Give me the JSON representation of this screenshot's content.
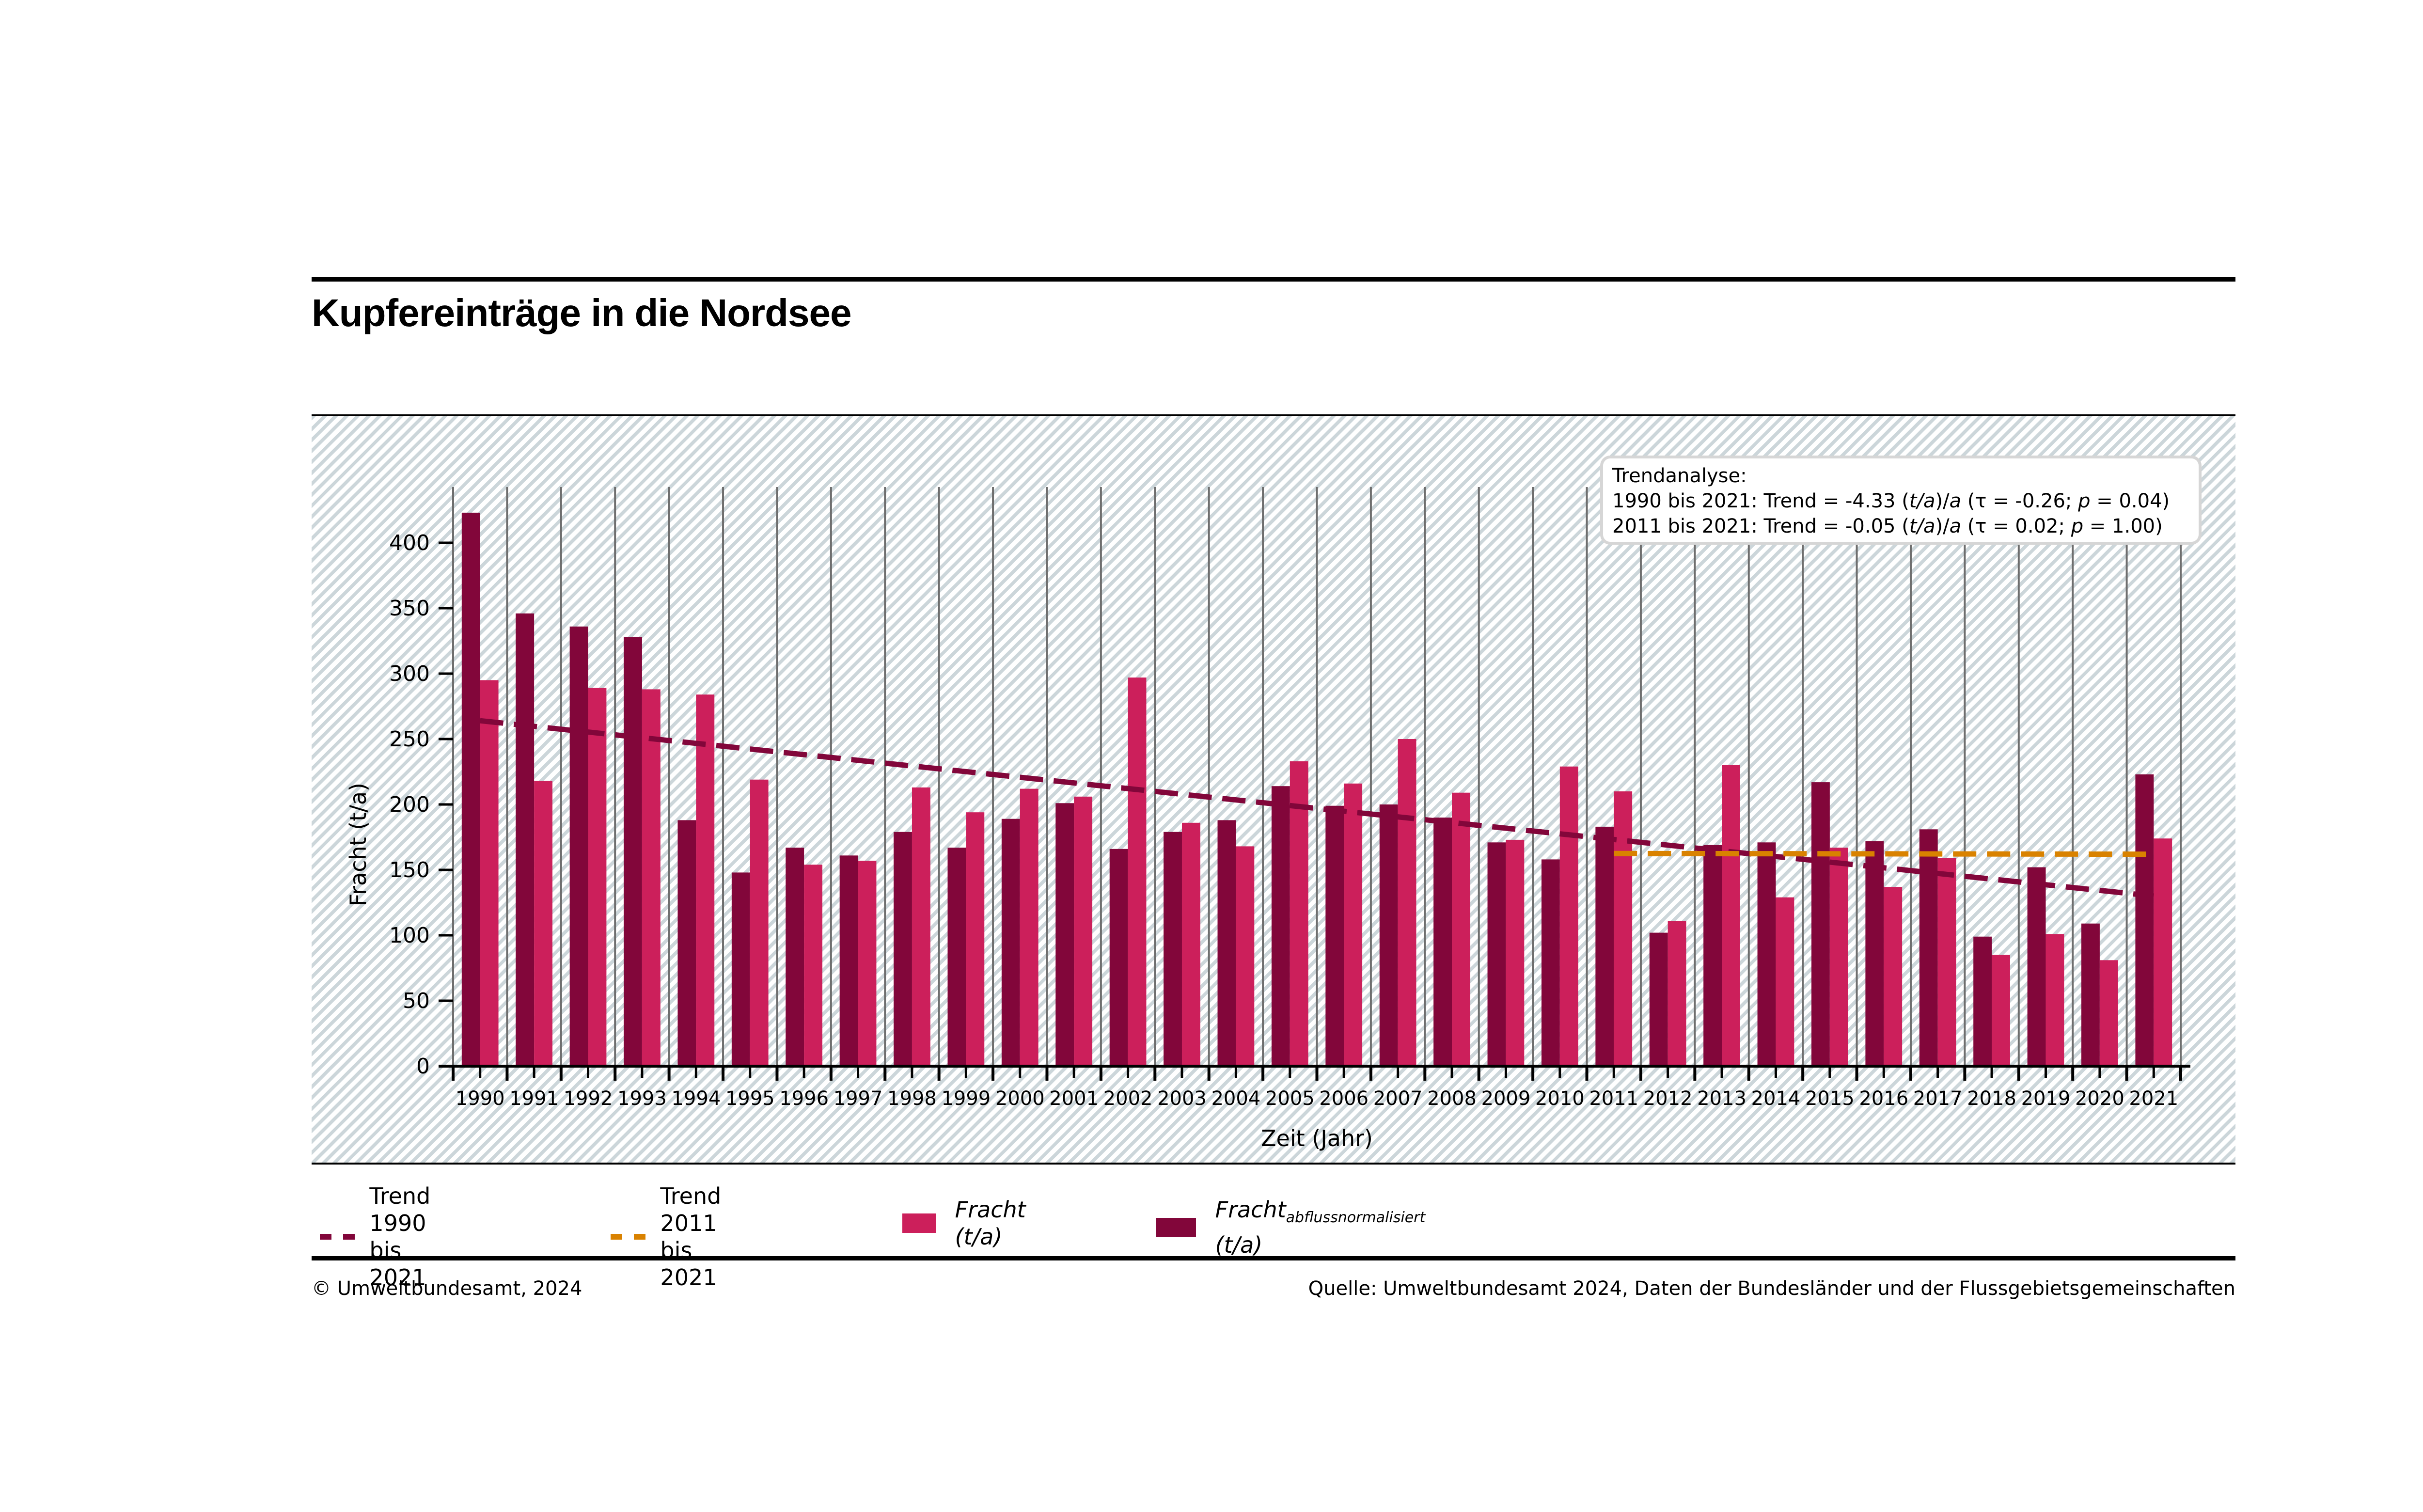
{
  "title": "Kupfereinträge in die Nordsee",
  "footer": {
    "copyright": "© Umweltbundesamt, 2024",
    "source": "Quelle: Umweltbundesamt 2024, Daten der Bundesländer und der Flussgebietsgemeinschaften"
  },
  "colors": {
    "fracht": "#cc1f5b",
    "fracht_normalized": "#82063a",
    "trend_long": "#82063a",
    "trend_short": "#d98200",
    "grid": "#6e6e6e"
  },
  "legend": {
    "trend_long_line1": "Trend",
    "trend_long_line2": "1990 bis 2021",
    "trend_short_line1": "Trend",
    "trend_short_line2": "2011 bis 2021",
    "fracht": "Fracht (t/a)",
    "fracht_norm_main": "Fracht",
    "fracht_norm_sub": "abflussnormalisiert",
    "fracht_norm_unit": " (t/a)"
  },
  "chart_data": {
    "type": "bar",
    "title": "Kupfereinträge in die Nordsee",
    "xlabel": "Zeit (Jahr)",
    "ylabel": "Fracht (t/a)",
    "ylim": [
      0,
      450
    ],
    "yticks": [
      0,
      50,
      100,
      150,
      200,
      250,
      300,
      350,
      400
    ],
    "grid": "vertical",
    "categories": [
      "1990",
      "1991",
      "1992",
      "1993",
      "1994",
      "1995",
      "1996",
      "1997",
      "1998",
      "1999",
      "2000",
      "2001",
      "2002",
      "2003",
      "2004",
      "2005",
      "2006",
      "2007",
      "2008",
      "2009",
      "2010",
      "2011",
      "2012",
      "2013",
      "2014",
      "2015",
      "2016",
      "2017",
      "2018",
      "2019",
      "2020",
      "2021"
    ],
    "series": [
      {
        "name": "Fracht abflussnormalisiert (t/a)",
        "key": "fracht_normalized",
        "values": [
          423,
          346,
          336,
          328,
          188,
          148,
          167,
          161,
          179,
          167,
          189,
          201,
          166,
          179,
          188,
          214,
          199,
          200,
          190,
          171,
          158,
          183,
          102,
          169,
          171,
          217,
          172,
          181,
          99,
          152,
          109,
          223
        ]
      },
      {
        "name": "Fracht (t/a)",
        "key": "fracht",
        "values": [
          295,
          218,
          289,
          288,
          284,
          219,
          154,
          157,
          213,
          194,
          212,
          206,
          297,
          186,
          168,
          233,
          216,
          250,
          209,
          173,
          229,
          210,
          111,
          230,
          129,
          167,
          137,
          159,
          85,
          101,
          81,
          174
        ]
      }
    ],
    "trends": [
      {
        "name": "Trend 1990 bis 2021",
        "from": "1990",
        "to": "2021",
        "start_value": 264,
        "end_value": 130,
        "slope": -4.33
      },
      {
        "name": "Trend 2011 bis 2021",
        "from": "2011",
        "to": "2021",
        "start_value": 162.5,
        "end_value": 162,
        "slope": -0.05
      }
    ],
    "annotation": {
      "header": "Trendanalyse:",
      "lines": [
        [
          "1990 bis 2021: Trend = -4.33 (",
          "t/a",
          ")/",
          "a",
          " (τ = -0.26; ",
          "p",
          " = 0.04)"
        ],
        [
          "2011 bis 2021: Trend = -0.05 (",
          "t/a",
          ")/",
          "a",
          " (τ = 0.02; ",
          "p",
          " = 1.00)"
        ]
      ],
      "placement": "top-right"
    },
    "legend_placement": "bottom"
  }
}
